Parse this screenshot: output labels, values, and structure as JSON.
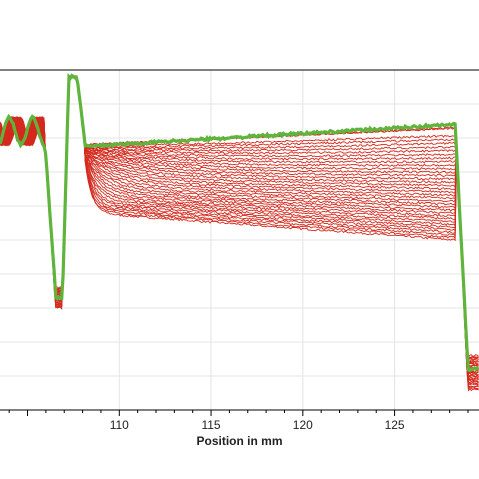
{
  "chart_data": {
    "type": "line",
    "title": "",
    "xlabel": "Position in mm",
    "ylabel": "",
    "xlim": [
      103.5,
      129.6
    ],
    "ylim": [
      0,
      1
    ],
    "x_ticks": [
      110,
      115,
      120,
      125
    ],
    "grid": true,
    "legend": "none",
    "colors": {
      "red_series": "#d42a1e",
      "green_series": "#5fb43c",
      "grid": "#e4e4e4",
      "axis": "#000000"
    },
    "series_groups": [
      {
        "color": "red",
        "count": 36,
        "description_values": {
          "top_plateau_level": 0.78,
          "lowest_plateau_left": 0.58,
          "lowest_plateau_right": 0.5,
          "left_dip_min": 0.3,
          "right_edge_min": 0.05
        }
      },
      {
        "color": "green",
        "count": 1,
        "description_values": {
          "plateau_left": 0.775,
          "plateau_right": 0.84,
          "left_dip_min": 0.33,
          "right_edge_min": 0.12
        }
      }
    ]
  }
}
